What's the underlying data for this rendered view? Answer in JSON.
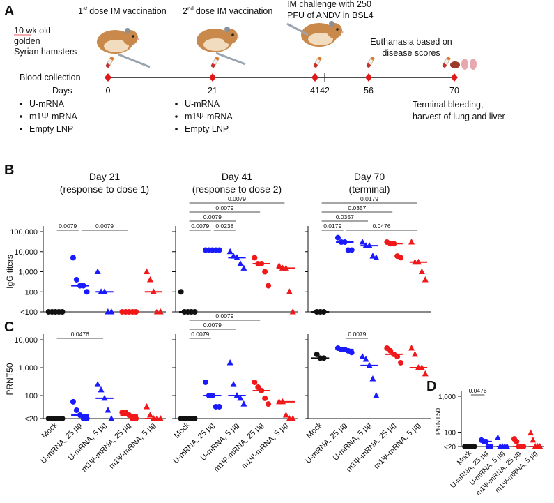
{
  "panel_labels": [
    "A",
    "B",
    "C",
    "D"
  ],
  "timeline": {
    "cohort": [
      "10 wk old",
      "golden",
      "Syrian hamsters"
    ],
    "dose1": {
      "number": "1",
      "suffix": "st",
      "text": "dose IM vaccination"
    },
    "dose2": {
      "number": "2",
      "suffix": "nd",
      "text": "dose IM vaccination"
    },
    "challenge": [
      "IM challenge with 250",
      "PFU of ANDV in BSL4"
    ],
    "euthanasia": [
      "Euthanasia based on",
      "disease scores"
    ],
    "blood_collection": "Blood collection",
    "days_label": "Days",
    "days": [
      0,
      21,
      41,
      42,
      56,
      70
    ],
    "groups": [
      "U-mRNA",
      "m1Ψ-mRNA",
      "Empty LNP"
    ],
    "terminal": [
      "Terminal bleeding,",
      "harvest of lung and liver"
    ]
  },
  "chart_data": [
    {
      "type": "scatter",
      "title": "Day 21",
      "subtitle": "(response to dose 1)",
      "ylabel": "IgG titers",
      "log_scale": true,
      "ylim": [
        10,
        100000
      ],
      "yticks": [
        {
          "value": 10,
          "label": "<100"
        },
        100,
        {
          "value": 1000,
          "label": "1,000"
        },
        {
          "value": 10000,
          "label": "10,000"
        },
        {
          "value": 100000,
          "label": "100,000"
        }
      ],
      "series": [
        {
          "color": "#111111",
          "marker": "circle",
          "values": [
            10,
            10,
            10,
            10,
            10
          ],
          "median": 10
        },
        {
          "color": "#1a1aff",
          "marker": "circle",
          "values": [
            5000,
            400,
            200,
            200,
            100
          ],
          "median": 200
        },
        {
          "color": "#1a1aff",
          "marker": "triangle",
          "values": [
            1000,
            100,
            100,
            10,
            10
          ],
          "median": 100
        },
        {
          "color": "#f01818",
          "marker": "circle",
          "values": [
            10,
            10,
            10,
            10,
            10
          ],
          "median": 10
        },
        {
          "color": "#f01818",
          "marker": "triangle",
          "values": [
            1000,
            400,
            100,
            10,
            10
          ],
          "median": 100
        }
      ],
      "comparisons": [
        {
          "groups": [
            0,
            1
          ],
          "p": 0.0079
        },
        {
          "groups": [
            1,
            3
          ],
          "p": 0.0079
        }
      ]
    },
    {
      "type": "scatter",
      "title": "Day 41",
      "subtitle": "(response to dose 2)",
      "log_scale": true,
      "ytick_labels": false,
      "ylim": [
        10,
        100000
      ],
      "yticks": [
        10,
        100,
        1000,
        10000,
        100000
      ],
      "series": [
        {
          "color": "#111111",
          "marker": "circle",
          "values": [
            100,
            10,
            10,
            10,
            10
          ],
          "median": 10
        },
        {
          "color": "#1a1aff",
          "marker": "circle",
          "values": [
            12000,
            12000,
            12000,
            12000,
            12000
          ],
          "median": 12000
        },
        {
          "color": "#1a1aff",
          "marker": "triangle",
          "values": [
            10000,
            6000,
            5000,
            2500,
            1500
          ],
          "median": 5000
        },
        {
          "color": "#f01818",
          "marker": "circle",
          "values": [
            5000,
            2500,
            2500,
            1000,
            200
          ],
          "median": 2500
        },
        {
          "color": "#f01818",
          "marker": "triangle",
          "values": [
            2000,
            1500,
            1500,
            100,
            10
          ],
          "median": 1500
        }
      ],
      "comparisons": [
        {
          "groups": [
            0,
            1
          ],
          "p": 0.0079
        },
        {
          "groups": [
            1,
            2
          ],
          "p": 0.0238
        },
        {
          "groups": [
            0,
            2
          ],
          "p": 0.0079
        },
        {
          "groups": [
            0,
            3
          ],
          "p": 0.0079
        },
        {
          "groups": [
            0,
            4
          ],
          "p": 0.0079
        }
      ]
    },
    {
      "type": "scatter",
      "title": "Day 70",
      "subtitle": "(terminal)",
      "log_scale": true,
      "ytick_labels": false,
      "ylim": [
        10,
        100000
      ],
      "yticks": [
        10,
        100,
        1000,
        10000,
        100000
      ],
      "series": [
        {
          "color": "#111111",
          "marker": "circle",
          "values": [
            10,
            10,
            10
          ],
          "median": 10
        },
        {
          "color": "#1a1aff",
          "marker": "circle",
          "values": [
            50000,
            30000,
            30000,
            12000,
            12000
          ],
          "median": 30000
        },
        {
          "color": "#1a1aff",
          "marker": "triangle",
          "values": [
            30000,
            20000,
            20000,
            6000,
            5000
          ],
          "median": 20000
        },
        {
          "color": "#f01818",
          "marker": "circle",
          "values": [
            30000,
            25000,
            25000,
            6000,
            5000
          ],
          "median": 25000
        },
        {
          "color": "#f01818",
          "marker": "triangle",
          "values": [
            30000,
            3000,
            3000,
            1000,
            400
          ],
          "median": 3000
        }
      ],
      "comparisons": [
        {
          "groups": [
            0,
            1
          ],
          "p": 0.0179
        },
        {
          "groups": [
            1,
            4
          ],
          "p": 0.0476
        },
        {
          "groups": [
            0,
            2
          ],
          "p": 0.0357
        },
        {
          "groups": [
            0,
            3
          ],
          "p": 0.0357
        },
        {
          "groups": [
            0,
            4
          ],
          "p": 0.0179
        }
      ]
    },
    {
      "type": "scatter",
      "ylabel": "PRNT50",
      "log_scale": true,
      "categories": [
        "Mock",
        "U-mRNA, 25 µg",
        "U-mRNA, 5 µg",
        "m1Ψ-mRNA, 25 µg",
        "m1Ψ-mRNA, 5 µg"
      ],
      "ylim": [
        15,
        10000
      ],
      "yticks": [
        {
          "value": 15,
          "label": "<20"
        },
        100,
        {
          "value": 1000,
          "label": "1,000"
        },
        {
          "value": 10000,
          "label": "10,000"
        }
      ],
      "series": [
        {
          "color": "#111111",
          "marker": "circle",
          "values": [
            15,
            15,
            15,
            15,
            15
          ],
          "median": 15
        },
        {
          "color": "#1a1aff",
          "marker": "circle",
          "values": [
            60,
            30,
            20,
            15,
            15
          ],
          "median": 20
        },
        {
          "color": "#1a1aff",
          "marker": "triangle",
          "values": [
            250,
            160,
            80,
            30,
            15
          ],
          "median": 80
        },
        {
          "color": "#f01818",
          "marker": "circle",
          "values": [
            25,
            25,
            20,
            15,
            15
          ],
          "median": 20
        },
        {
          "color": "#f01818",
          "marker": "triangle",
          "values": [
            40,
            20,
            15,
            15,
            15
          ],
          "median": 15
        }
      ],
      "comparisons": [
        {
          "groups": [
            0,
            2
          ],
          "p": 0.0476
        }
      ]
    },
    {
      "type": "scatter",
      "log_scale": true,
      "ytick_labels": false,
      "categories": [
        "Mock",
        "U-mRNA, 25 µg",
        "U-mRNA, 5 µg",
        "m1Ψ-mRNA, 25 µg",
        "m1Ψ-mRNA, 5 µg"
      ],
      "ylim": [
        15,
        10000
      ],
      "yticks": [
        15,
        100,
        1000,
        10000
      ],
      "series": [
        {
          "color": "#111111",
          "marker": "circle",
          "values": [
            15,
            15,
            15,
            15,
            15
          ],
          "median": 15
        },
        {
          "color": "#1a1aff",
          "marker": "circle",
          "values": [
            300,
            100,
            100,
            40,
            40
          ],
          "median": 100
        },
        {
          "color": "#1a1aff",
          "marker": "triangle",
          "values": [
            1500,
            250,
            100,
            80,
            50
          ],
          "median": 100
        },
        {
          "color": "#f01818",
          "marker": "circle",
          "values": [
            300,
            200,
            150,
            80,
            50
          ],
          "median": 150
        },
        {
          "color": "#f01818",
          "marker": "triangle",
          "values": [
            60,
            60,
            20,
            15,
            15
          ],
          "median": 60
        }
      ],
      "comparisons": [
        {
          "groups": [
            0,
            1
          ],
          "p": 0.0079
        },
        {
          "groups": [
            0,
            2
          ],
          "p": 0.0079
        },
        {
          "groups": [
            0,
            3
          ],
          "p": 0.0079
        }
      ]
    },
    {
      "type": "scatter",
      "log_scale": true,
      "ytick_labels": false,
      "categories": [
        "Mock",
        "U-mRNA, 25 µg",
        "U-mRNA, 5 µg",
        "m1Ψ-mRNA, 25 µg",
        "m1Ψ-mRNA, 5 µg"
      ],
      "ylim": [
        15,
        10000
      ],
      "yticks": [
        15,
        100,
        1000,
        10000
      ],
      "series": [
        {
          "color": "#111111",
          "marker": "circle",
          "values": [
            3000,
            2200,
            2200
          ],
          "median": 2200
        },
        {
          "color": "#1a1aff",
          "marker": "circle",
          "values": [
            5000,
            4500,
            4500,
            4000,
            3500
          ],
          "median": 4500
        },
        {
          "color": "#1a1aff",
          "marker": "triangle",
          "values": [
            2500,
            2000,
            1200,
            400,
            100
          ],
          "median": 1200
        },
        {
          "color": "#f01818",
          "marker": "circle",
          "values": [
            5000,
            4000,
            3000,
            2500,
            1500
          ],
          "median": 3000
        },
        {
          "color": "#f01818",
          "marker": "triangle",
          "values": [
            5000,
            3000,
            1000,
            1000,
            600
          ],
          "median": 1000
        }
      ],
      "comparisons": [
        {
          "groups": [
            1,
            2
          ],
          "p": 0.0079
        }
      ]
    },
    {
      "type": "scatter",
      "ylabel": "PRNT50",
      "log_scale": true,
      "categories": [
        "Mock",
        "U-mRNA, 25 µg",
        "U-mRNA, 5 µg",
        "m1Ψ-mRNA, 25 µg",
        "m1Ψ-mRNA, 5 µg"
      ],
      "ylim": [
        40,
        1000
      ],
      "yticks": [
        {
          "value": 40,
          "label": "<20"
        },
        100,
        {
          "value": 1000,
          "label": "1,000"
        }
      ],
      "series": [
        {
          "color": "#111111",
          "marker": "circle",
          "values": [
            40,
            40,
            40,
            40,
            40
          ],
          "median": 40
        },
        {
          "color": "#1a1aff",
          "marker": "circle",
          "values": [
            60,
            55,
            55,
            40,
            40
          ],
          "median": 55
        },
        {
          "color": "#1a1aff",
          "marker": "triangle",
          "values": [
            70,
            40,
            40,
            40,
            40
          ],
          "median": 40
        },
        {
          "color": "#f01818",
          "marker": "circle",
          "values": [
            65,
            55,
            40,
            40,
            40
          ],
          "median": 40
        },
        {
          "color": "#f01818",
          "marker": "triangle",
          "values": [
            95,
            60,
            40,
            40,
            40
          ],
          "median": 40
        }
      ],
      "comparisons": [
        {
          "groups": [
            0,
            1
          ],
          "p": 0.0476
        }
      ]
    }
  ]
}
